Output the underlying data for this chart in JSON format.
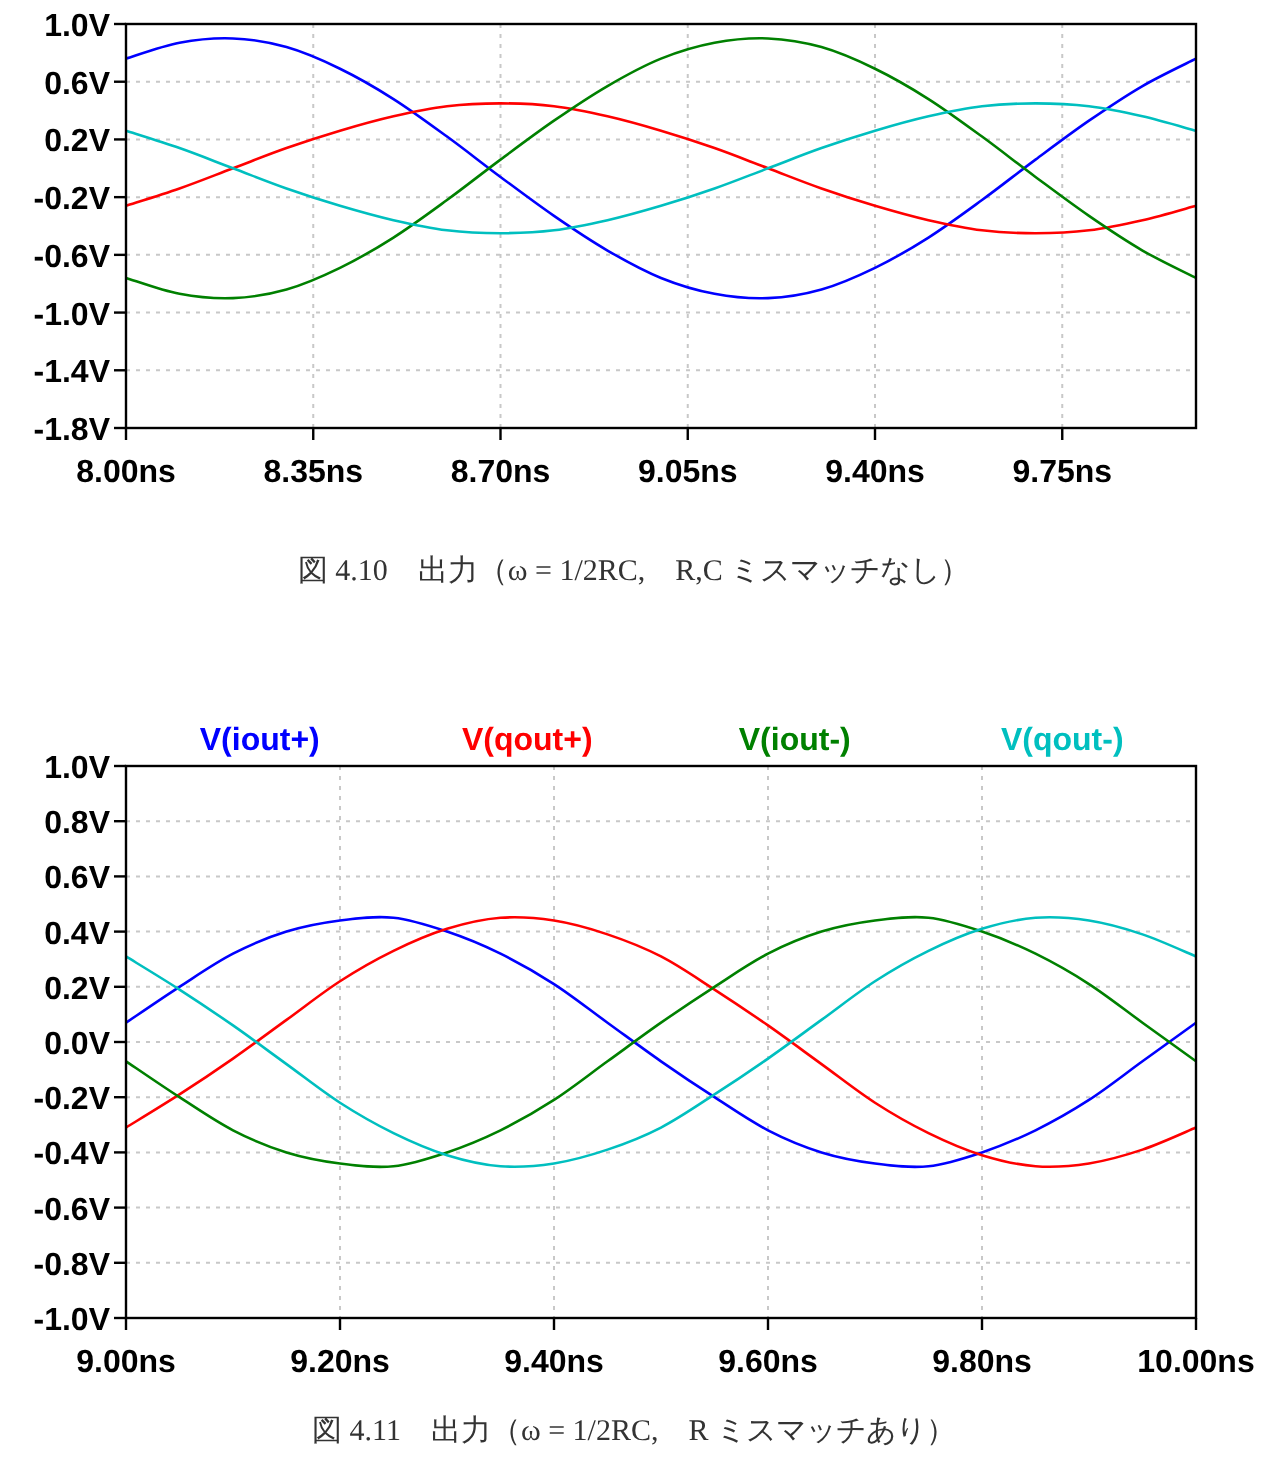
{
  "chart_data": [
    {
      "type": "line",
      "x": [
        8.0,
        8.1,
        8.2,
        8.3,
        8.4,
        8.5,
        8.6,
        8.7,
        8.8,
        8.9,
        9.0,
        9.1,
        9.2,
        9.3,
        9.4,
        9.5,
        9.6,
        9.7,
        9.8,
        9.9,
        10.0
      ],
      "series": [
        {
          "color": "#0000ff",
          "values": [
            0.76,
            0.87,
            0.9,
            0.84,
            0.69,
            0.48,
            0.22,
            -0.06,
            -0.33,
            -0.57,
            -0.76,
            -0.87,
            -0.9,
            -0.84,
            -0.69,
            -0.48,
            -0.22,
            0.06,
            0.33,
            0.57,
            0.76
          ]
        },
        {
          "color": "#ff0000",
          "values": [
            -0.26,
            -0.14,
            0,
            0.14,
            0.26,
            0.36,
            0.43,
            0.45,
            0.43,
            0.36,
            0.26,
            0.14,
            0,
            -0.14,
            -0.26,
            -0.36,
            -0.43,
            -0.45,
            -0.43,
            -0.36,
            -0.26
          ]
        },
        {
          "color": "#008000",
          "values": [
            -0.76,
            -0.87,
            -0.9,
            -0.84,
            -0.69,
            -0.48,
            -0.22,
            0.06,
            0.33,
            0.57,
            0.76,
            0.87,
            0.9,
            0.84,
            0.69,
            0.48,
            0.22,
            -0.06,
            -0.33,
            -0.57,
            -0.76
          ]
        },
        {
          "color": "#00bfbf",
          "values": [
            0.26,
            0.14,
            0,
            -0.14,
            -0.26,
            -0.36,
            -0.43,
            -0.45,
            -0.43,
            -0.36,
            -0.26,
            -0.14,
            0,
            0.14,
            0.26,
            0.36,
            0.43,
            0.45,
            0.43,
            0.36,
            0.26
          ]
        }
      ],
      "xlim": [
        8.0,
        10.0
      ],
      "xticks": [
        {
          "value": 8.0,
          "label": "8.00ns"
        },
        {
          "value": 8.35,
          "label": "8.35ns"
        },
        {
          "value": 8.7,
          "label": "8.70ns"
        },
        {
          "value": 9.05,
          "label": "9.05ns"
        },
        {
          "value": 9.4,
          "label": "9.40ns"
        },
        {
          "value": 9.75,
          "label": "9.75ns"
        }
      ],
      "ylim": [
        -1.8,
        1.0
      ],
      "yticks": [
        {
          "value": -1.8,
          "label": "-1.8V"
        },
        {
          "value": -1.4,
          "label": "-1.4V"
        },
        {
          "value": -1.0,
          "label": "-1.0V"
        },
        {
          "value": -0.6,
          "label": "-0.6V"
        },
        {
          "value": -0.2,
          "label": "-0.2V"
        },
        {
          "value": 0.2,
          "label": "0.2V"
        },
        {
          "value": 0.6,
          "label": "0.6V"
        },
        {
          "value": 1.0,
          "label": "1.0V"
        }
      ],
      "grid": true,
      "annotations": [
        "図 4.10　出力（ω = 1/2RC,　R,C ミスマッチなし）"
      ]
    },
    {
      "type": "line",
      "x": [
        9.0,
        9.05,
        9.1,
        9.15,
        9.2,
        9.25,
        9.3,
        9.35,
        9.4,
        9.45,
        9.5,
        9.55,
        9.6,
        9.65,
        9.7,
        9.75,
        9.8,
        9.85,
        9.9,
        9.95,
        10.0
      ],
      "series": [
        {
          "name": "V(iout+)",
          "color": "#0000ff",
          "values": [
            0.07,
            0.2,
            0.32,
            0.4,
            0.44,
            0.45,
            0.4,
            0.32,
            0.21,
            0.07,
            -0.07,
            -0.2,
            -0.32,
            -0.4,
            -0.44,
            -0.45,
            -0.4,
            -0.32,
            -0.21,
            -0.07,
            0.07
          ]
        },
        {
          "name": "V(qout+)",
          "color": "#ff0000",
          "values": [
            -0.31,
            -0.19,
            -0.06,
            0.08,
            0.22,
            0.33,
            0.41,
            0.45,
            0.44,
            0.39,
            0.31,
            0.19,
            0.06,
            -0.08,
            -0.22,
            -0.33,
            -0.41,
            -0.45,
            -0.44,
            -0.39,
            -0.31
          ]
        },
        {
          "name": "V(iout-)",
          "color": "#008000",
          "values": [
            -0.07,
            -0.2,
            -0.32,
            -0.4,
            -0.44,
            -0.45,
            -0.4,
            -0.32,
            -0.21,
            -0.07,
            0.07,
            0.2,
            0.32,
            0.4,
            0.44,
            0.45,
            0.4,
            0.32,
            0.21,
            0.07,
            -0.07
          ]
        },
        {
          "name": "V(qout-)",
          "color": "#00bfbf",
          "values": [
            0.31,
            0.19,
            0.06,
            -0.08,
            -0.22,
            -0.33,
            -0.41,
            -0.45,
            -0.44,
            -0.39,
            -0.31,
            -0.19,
            -0.06,
            0.08,
            0.22,
            0.33,
            0.41,
            0.45,
            0.44,
            0.39,
            0.31
          ]
        }
      ],
      "xlim": [
        9.0,
        10.0
      ],
      "xticks": [
        {
          "value": 9.0,
          "label": "9.00ns"
        },
        {
          "value": 9.2,
          "label": "9.20ns"
        },
        {
          "value": 9.4,
          "label": "9.40ns"
        },
        {
          "value": 9.6,
          "label": "9.60ns"
        },
        {
          "value": 9.8,
          "label": "9.80ns"
        },
        {
          "value": 10.0,
          "label": "10.00ns"
        }
      ],
      "ylim": [
        -1.0,
        1.0
      ],
      "yticks": [
        {
          "value": -1.0,
          "label": "-1.0V"
        },
        {
          "value": -0.8,
          "label": "-0.8V"
        },
        {
          "value": -0.6,
          "label": "-0.6V"
        },
        {
          "value": -0.4,
          "label": "-0.4V"
        },
        {
          "value": -0.2,
          "label": "-0.2V"
        },
        {
          "value": 0.0,
          "label": "0.0V"
        },
        {
          "value": 0.2,
          "label": "0.2V"
        },
        {
          "value": 0.4,
          "label": "0.4V"
        },
        {
          "value": 0.6,
          "label": "0.6V"
        },
        {
          "value": 0.8,
          "label": "0.8V"
        },
        {
          "value": 1.0,
          "label": "1.0V"
        }
      ],
      "grid": true,
      "legend": "top",
      "annotations": [
        "図 4.11　出力（ω = 1/2RC,　R ミスマッチあり）"
      ]
    }
  ]
}
